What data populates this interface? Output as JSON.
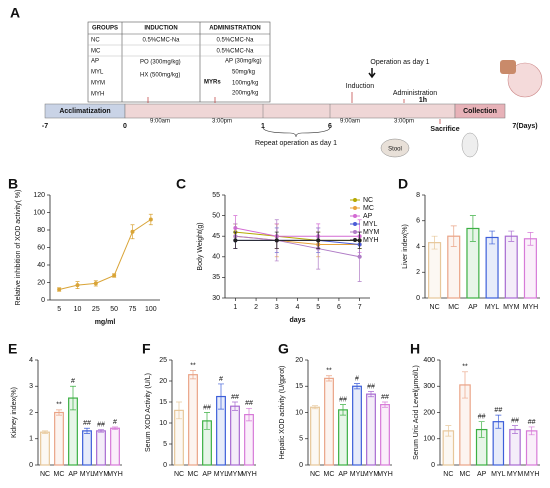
{
  "panel_a": {
    "label": "A",
    "table": {
      "header": [
        "GROUPS",
        "INDUCTION",
        "ADMINISTRATION"
      ],
      "groups": [
        "NC",
        "MC",
        "AP",
        "MYL",
        "MYM",
        "MYH"
      ],
      "nc_induction": "0.5%CMC-Na",
      "nc_administration": "0.5%CMC-Na",
      "mc_administration": "0.5%CMC-Na",
      "induction_po": "PO (300mg/kg)",
      "induction_hx": "HX (500mg/kg)",
      "ap_administration": "AP (30mg/kg)",
      "myrs": "MYRs",
      "myrs_doses": [
        "50mg/kg",
        "100mg/kg",
        "200mg/kg"
      ]
    },
    "timeline": {
      "acclimatization": "Acclimatization",
      "collection": "Collection",
      "days": [
        "-7",
        "0",
        "1",
        "6",
        "7(Days)"
      ],
      "day1_times": [
        "9:00am",
        "3:00pm"
      ],
      "day7_times": [
        "9:00am",
        "3:00pm"
      ],
      "repeat": "Repeat operation as day 1",
      "operation": "Operation as day 1",
      "induction": "Induction",
      "administration": "Administration",
      "interval": "1h",
      "sacrifice": "Sacrifice",
      "stool": "Stool"
    }
  },
  "chart_data": [
    {
      "panel": "B",
      "type": "line",
      "ylabel": "Relative inhibition of XOD activity( %)",
      "xlabel": "mg/ml",
      "categories": [
        "5",
        "10",
        "25",
        "50",
        "75",
        "100"
      ],
      "ylim": [
        0,
        120
      ],
      "yticks": [
        0,
        20,
        40,
        60,
        80,
        100,
        120
      ],
      "series": [
        {
          "color": "#d9a437",
          "values": [
            12,
            17,
            19,
            28,
            78,
            92
          ],
          "errors": [
            2,
            4,
            3,
            2,
            8,
            6
          ]
        }
      ]
    },
    {
      "panel": "C",
      "type": "line",
      "ylabel": "Body Weight(g)",
      "xlabel": "days",
      "x": [
        1,
        3,
        5,
        7
      ],
      "xlim": [
        0.5,
        7.5
      ],
      "xticks": [
        1,
        2,
        3,
        4,
        5,
        6,
        7
      ],
      "ylim": [
        30,
        55
      ],
      "yticks": [
        30,
        35,
        40,
        45,
        50,
        55
      ],
      "series": [
        {
          "name": "NC",
          "color": "#b5a800",
          "values": [
            46,
            45,
            44,
            44
          ],
          "errors": [
            2,
            3,
            2,
            2
          ]
        },
        {
          "name": "MC",
          "color": "#e8a33a",
          "values": [
            45,
            44,
            43,
            43
          ],
          "errors": [
            3,
            4,
            3,
            3
          ]
        },
        {
          "name": "AP",
          "color": "#d36ad3",
          "values": [
            47,
            45,
            45,
            45
          ],
          "errors": [
            3,
            3,
            3,
            4
          ]
        },
        {
          "name": "MYL",
          "color": "#4b5bd6",
          "values": [
            44,
            44,
            44,
            43
          ],
          "errors": [
            2,
            3,
            3,
            3
          ]
        },
        {
          "name": "MYM",
          "color": "#b07cc6",
          "values": [
            45,
            44,
            42,
            40
          ],
          "errors": [
            3,
            5,
            5,
            6
          ]
        },
        {
          "name": "MYH",
          "color": "#222222",
          "values": [
            44,
            44,
            44,
            44
          ],
          "errors": [
            2,
            2,
            2,
            2
          ]
        }
      ]
    },
    {
      "panel": "D",
      "type": "bar",
      "ylabel": "Liver index(%)",
      "categories": [
        "NC",
        "MC",
        "AP",
        "MYL",
        "MYM",
        "MYH"
      ],
      "colors": [
        "#e7c79a",
        "#eaa487",
        "#3cb043",
        "#3d5fd9",
        "#a86bd1",
        "#d77ad8"
      ],
      "values": [
        4.3,
        4.8,
        5.4,
        4.7,
        4.8,
        4.6
      ],
      "errors": [
        0.5,
        0.8,
        1.0,
        0.5,
        0.4,
        0.5
      ],
      "annotations": [
        null,
        null,
        null,
        null,
        null,
        null
      ],
      "ylim": [
        0,
        8
      ],
      "yticks": [
        0,
        2,
        4,
        6,
        8
      ]
    },
    {
      "panel": "E",
      "type": "bar",
      "ylabel": "Kidney index(%)",
      "categories": [
        "NC",
        "MC",
        "AP",
        "MYL",
        "MYM",
        "MYH"
      ],
      "colors": [
        "#e7c79a",
        "#eaa487",
        "#3cb043",
        "#3d5fd9",
        "#a86bd1",
        "#d77ad8"
      ],
      "values": [
        1.25,
        2.0,
        2.55,
        1.3,
        1.3,
        1.4
      ],
      "errors": [
        0.05,
        0.1,
        0.45,
        0.1,
        0.05,
        0.05
      ],
      "annotations": [
        null,
        "**",
        "#",
        "##",
        "##",
        "#"
      ],
      "ylim": [
        0,
        4
      ],
      "yticks": [
        0,
        1,
        2,
        3,
        4
      ]
    },
    {
      "panel": "F",
      "type": "bar",
      "ylabel": "Serum XOD Activity (U/L)",
      "categories": [
        "NC",
        "MC",
        "AP",
        "MYL",
        "MYM",
        "MYH"
      ],
      "colors": [
        "#e7c79a",
        "#eaa487",
        "#3cb043",
        "#3d5fd9",
        "#a86bd1",
        "#d77ad8"
      ],
      "values": [
        13,
        21.5,
        10.5,
        16.3,
        14,
        12
      ],
      "errors": [
        2,
        1,
        2,
        3,
        1,
        1.5
      ],
      "annotations": [
        null,
        "**",
        "##",
        "#",
        "##",
        "##"
      ],
      "ylim": [
        0,
        25
      ],
      "yticks": [
        0,
        5,
        10,
        15,
        20,
        25
      ]
    },
    {
      "panel": "G",
      "type": "bar",
      "ylabel": "Hepatic XOD activity (U/gprot)",
      "categories": [
        "NC",
        "MC",
        "AP",
        "MYL",
        "MYM",
        "MYH"
      ],
      "colors": [
        "#e7c79a",
        "#eaa487",
        "#3cb043",
        "#3d5fd9",
        "#a86bd1",
        "#d77ad8"
      ],
      "values": [
        11,
        16.5,
        10.5,
        15,
        13.5,
        11.5
      ],
      "errors": [
        0.3,
        0.5,
        1,
        0.5,
        0.5,
        0.5
      ],
      "annotations": [
        null,
        "**",
        "##",
        "#",
        "##",
        "##"
      ],
      "ylim": [
        0,
        20
      ],
      "yticks": [
        0,
        5,
        10,
        15,
        20
      ]
    },
    {
      "panel": "H",
      "type": "bar",
      "ylabel": "Serum Uric Acid Level(μmol/L)",
      "categories": [
        "NC",
        "MC",
        "AP",
        "MYL",
        "MYM",
        "MYH"
      ],
      "colors": [
        "#e7c79a",
        "#eaa487",
        "#3cb043",
        "#3d5fd9",
        "#a86bd1",
        "#d77ad8"
      ],
      "values": [
        130,
        305,
        135,
        165,
        135,
        130
      ],
      "errors": [
        20,
        50,
        30,
        25,
        15,
        15
      ],
      "annotations": [
        null,
        "**",
        "##",
        "##",
        "##",
        "##"
      ],
      "ylim": [
        0,
        400
      ],
      "yticks": [
        0,
        100,
        200,
        300,
        400
      ]
    }
  ]
}
